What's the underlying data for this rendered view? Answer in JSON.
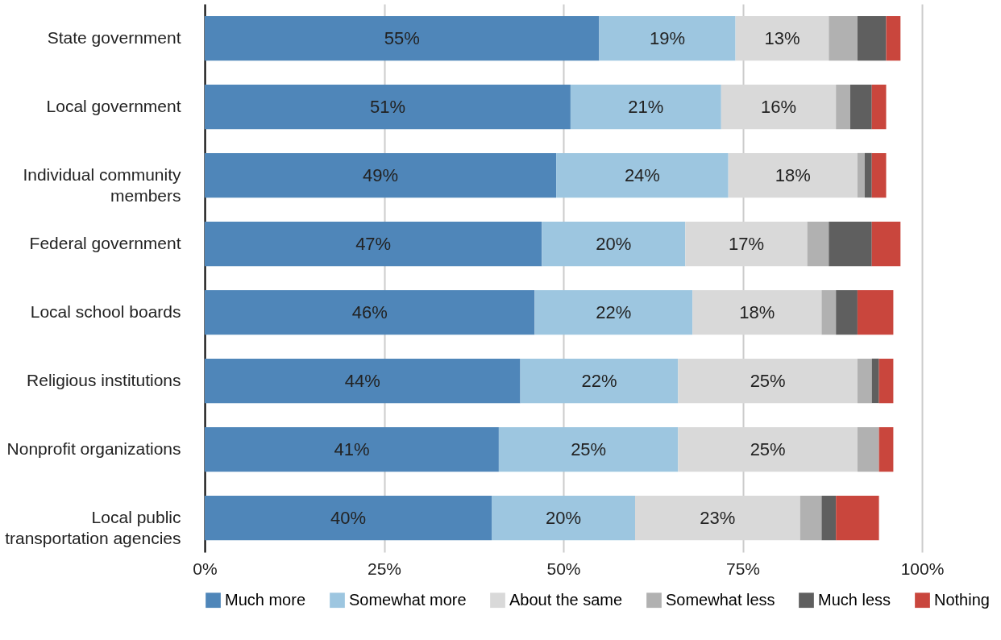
{
  "chart_data": {
    "type": "bar",
    "orientation": "horizontal",
    "stacked": true,
    "categories": [
      "State government",
      "Local government",
      "Individual community\nmembers",
      "Federal government",
      "Local school boards",
      "Religious institutions",
      "Nonprofit organizations",
      "Local public\ntransportation agencies"
    ],
    "series": [
      {
        "name": "Much more",
        "color": "#4f86b9",
        "values": [
          55,
          51,
          49,
          47,
          46,
          44,
          41,
          40
        ],
        "value_labels": [
          "55%",
          "51%",
          "49%",
          "47%",
          "46%",
          "44%",
          "41%",
          "40%"
        ]
      },
      {
        "name": "Somewhat more",
        "color": "#9dc6e0",
        "values": [
          19,
          21,
          24,
          20,
          22,
          22,
          25,
          20
        ],
        "value_labels": [
          "19%",
          "21%",
          "24%",
          "20%",
          "22%",
          "22%",
          "25%",
          "20%"
        ]
      },
      {
        "name": "About the same",
        "color": "#d9d9d9",
        "values": [
          13,
          16,
          18,
          17,
          18,
          25,
          25,
          23
        ],
        "value_labels": [
          "13%",
          "16%",
          "18%",
          "17%",
          "18%",
          "25%",
          "25%",
          "23%"
        ]
      },
      {
        "name": "Somewhat less",
        "color": "#b1b1b1",
        "values": [
          4,
          2,
          1,
          3,
          2,
          2,
          3,
          3
        ]
      },
      {
        "name": "Much less",
        "color": "#5f5f5f",
        "values": [
          4,
          3,
          1,
          6,
          3,
          1,
          0,
          2
        ]
      },
      {
        "name": "Nothing",
        "color": "#c9463d",
        "values": [
          2,
          2,
          2,
          4,
          5,
          2,
          2,
          6
        ]
      }
    ],
    "xlim": [
      0,
      100
    ],
    "xticks": [
      {
        "value": 0,
        "label": "0%"
      },
      {
        "value": 25,
        "label": "25%"
      },
      {
        "value": 50,
        "label": "50%"
      },
      {
        "value": 75,
        "label": "75%"
      },
      {
        "value": 100,
        "label": "100%"
      }
    ],
    "grid": "x",
    "legend": "bottom"
  }
}
